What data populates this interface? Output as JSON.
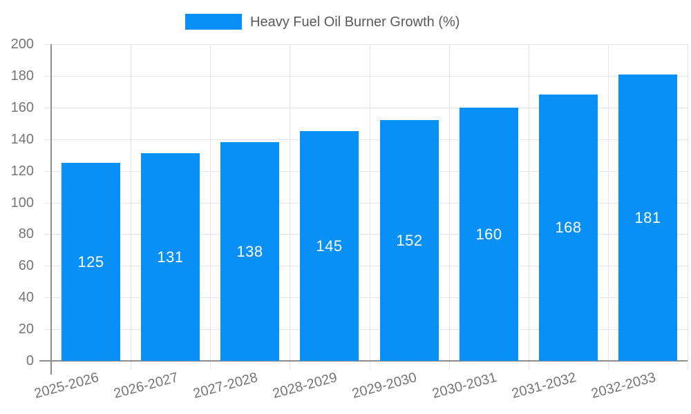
{
  "chart_data": {
    "type": "bar",
    "title": "Heavy Fuel Oil Burner Growth (%)",
    "legend": [
      "Heavy Fuel Oil Burner Growth (%)"
    ],
    "legend_position": "top",
    "categories": [
      "2025-2026",
      "2026-2027",
      "2027-2028",
      "2028-2029",
      "2029-2030",
      "2030-2031",
      "2031-2032",
      "2032-2033"
    ],
    "values": [
      125,
      131,
      138,
      145,
      152,
      160,
      168,
      181
    ],
    "data_labels": [
      "125",
      "131",
      "138",
      "145",
      "152",
      "160",
      "168",
      "181"
    ],
    "xlabel": "",
    "ylabel": "",
    "ylim": [
      0,
      200
    ],
    "y_tick_step": 20,
    "y_ticks": [
      0,
      20,
      40,
      60,
      80,
      100,
      120,
      140,
      160,
      180,
      200
    ],
    "grid": true,
    "x_label_rotation_deg": -15,
    "colors": {
      "bar": "#0990F6",
      "gridline": "#E4E4E4",
      "axis_line": "#8C8C8C",
      "tick_text": "#757575",
      "legend_text": "#58595B",
      "value_label_text": "#FFFFFF",
      "background": "#FFFFFF"
    }
  }
}
